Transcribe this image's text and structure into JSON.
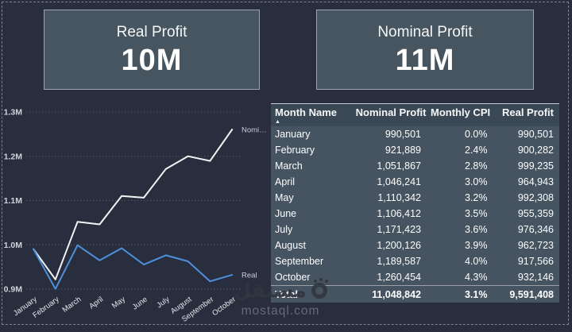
{
  "cards": {
    "real": {
      "title": "Real Profit",
      "value": "10M"
    },
    "nominal": {
      "title": "Nominal Profit",
      "value": "11M"
    }
  },
  "chart_data": {
    "type": "line",
    "title": "",
    "categories": [
      "January",
      "February",
      "March",
      "April",
      "May",
      "June",
      "July",
      "August",
      "September",
      "October"
    ],
    "series": [
      {
        "name": "Nominal Profit",
        "end_label": "Nomi…",
        "color": "#f2f3f5",
        "values": [
          990501,
          921889,
          1051867,
          1046241,
          1110342,
          1106412,
          1171423,
          1200126,
          1189587,
          1260454
        ]
      },
      {
        "name": "Real Profit",
        "end_label": "Real",
        "color": "#4e90da",
        "values": [
          990501,
          900282,
          999235,
          964943,
          992308,
          955359,
          976346,
          962723,
          917566,
          932146
        ]
      }
    ],
    "ylim": [
      900000,
      1300000
    ],
    "y_ticks": [
      "0.9M",
      "1.0M",
      "1.1M",
      "1.2M",
      "1.3M"
    ],
    "grid": "dotted-horizontal",
    "legend_position": "line-end-labels"
  },
  "table": {
    "columns": [
      {
        "label": "Month Name",
        "align": "left",
        "sorted": "asc"
      },
      {
        "label": "Nominal Profit",
        "align": "right"
      },
      {
        "label": "Monthly CPI",
        "align": "right"
      },
      {
        "label": "Real Profit",
        "align": "right"
      }
    ],
    "sort_icon": "▲",
    "rows": [
      [
        "January",
        "990,501",
        "0.0%",
        "990,501"
      ],
      [
        "February",
        "921,889",
        "2.4%",
        "900,282"
      ],
      [
        "March",
        "1,051,867",
        "2.8%",
        "999,235"
      ],
      [
        "April",
        "1,046,241",
        "3.0%",
        "964,943"
      ],
      [
        "May",
        "1,110,342",
        "3.2%",
        "992,308"
      ],
      [
        "June",
        "1,106,412",
        "3.5%",
        "955,359"
      ],
      [
        "July",
        "1,171,423",
        "3.6%",
        "976,346"
      ],
      [
        "August",
        "1,200,126",
        "3.9%",
        "962,723"
      ],
      [
        "September",
        "1,189,587",
        "4.0%",
        "917,566"
      ],
      [
        "October",
        "1,260,454",
        "4.3%",
        "932,146"
      ]
    ],
    "total": [
      "Total",
      "11,048,842",
      "3.1%",
      "9,591,408"
    ]
  },
  "watermark": {
    "arabic": "مستقل",
    "domain": "mostaql.com"
  },
  "colors": {
    "page_bg": "#282e3e",
    "card_bg": "#46555f",
    "card_border": "#9aa5ad",
    "table_header_bg": "#3a4855",
    "table_body_bg": "#455460",
    "nominal_line": "#f2f3f5",
    "real_line": "#4e90da",
    "grid_dots": "#5a6272",
    "axis_label": "#cfd4db"
  }
}
